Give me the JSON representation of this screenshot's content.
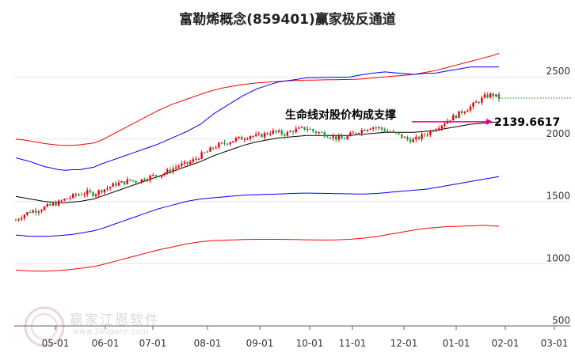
{
  "chart_data": {
    "type": "line",
    "title": "富勒烯概念(859401)赢家极反通道",
    "x_ticks": [
      "05-01",
      "06-01",
      "07-01",
      "08-01",
      "09-01",
      "10-01",
      "11-01",
      "12-01",
      "01-01",
      "02-01",
      "03-01"
    ],
    "y_ticks": [
      500,
      1000,
      1500,
      2000,
      2500
    ],
    "ylim": [
      500,
      2800
    ],
    "grid": "horizontal",
    "series": [
      {
        "values": [
          1350,
          1390,
          1420,
          1430,
          1450,
          1470,
          1490,
          1520,
          1540,
          1560,
          1570,
          1560,
          1590,
          1610,
          1640,
          1650,
          1670,
          1660,
          1680,
          1700,
          1710,
          1730,
          1760,
          1790,
          1800,
          1830,
          1870,
          1900,
          1940,
          1960,
          1980,
          2000,
          2010,
          2030,
          2020,
          2040,
          2060,
          2050,
          2040,
          2070,
          2080,
          2090,
          2060,
          2050,
          2030,
          2010,
          2000,
          2030,
          2060,
          2080,
          2100,
          2090,
          2070,
          2050,
          2030,
          2000,
          1990,
          2020,
          2050,
          2090,
          2120,
          2160,
          2190,
          2230,
          2260,
          2300,
          2340,
          2360,
          2330
        ]
      },
      {
        "values": [
          1540,
          1530,
          1520,
          1510,
          1500,
          1495,
          1490,
          1490,
          1495,
          1500,
          1510,
          1520,
          1540,
          1560,
          1580,
          1600,
          1620,
          1640,
          1660,
          1680,
          1700,
          1720,
          1740,
          1760,
          1780,
          1800,
          1820,
          1845,
          1870,
          1890,
          1910,
          1930,
          1950,
          1965,
          1980,
          1990,
          2000,
          2010,
          2015,
          2020,
          2025,
          2030,
          2030,
          2030,
          2030,
          2030,
          2030,
          2030,
          2035,
          2040,
          2045,
          2050,
          2055,
          2055,
          2055,
          2055,
          2055,
          2060,
          2065,
          2070,
          2080,
          2090,
          2100,
          2110,
          2120,
          2125,
          2130,
          2135,
          2140
        ]
      },
      {
        "values": [
          1230,
          1225,
          1220,
          1220,
          1220,
          1222,
          1225,
          1230,
          1235,
          1245,
          1255,
          1265,
          1280,
          1300,
          1320,
          1340,
          1360,
          1380,
          1400,
          1420,
          1440,
          1455,
          1470,
          1485,
          1500,
          1510,
          1520,
          1525,
          1530,
          1535,
          1540,
          1545,
          1550,
          1552,
          1554,
          1556,
          1558,
          1560,
          1562,
          1564,
          1566,
          1567,
          1566,
          1565,
          1564,
          1563,
          1562,
          1561,
          1560,
          1560,
          1562,
          1565,
          1570,
          1575,
          1580,
          1585,
          1590,
          1595,
          1600,
          1610,
          1620,
          1630,
          1640,
          1650,
          1660,
          1670,
          1680,
          1690,
          1700
        ]
      },
      {
        "values": [
          2000,
          1995,
          1985,
          1975,
          1965,
          1958,
          1952,
          1950,
          1950,
          1955,
          1962,
          1970,
          1990,
          2020,
          2050,
          2080,
          2110,
          2140,
          2170,
          2200,
          2230,
          2255,
          2280,
          2300,
          2320,
          2340,
          2360,
          2380,
          2395,
          2410,
          2420,
          2430,
          2440,
          2446,
          2452,
          2456,
          2460,
          2464,
          2468,
          2470,
          2472,
          2474,
          2475,
          2476,
          2477,
          2478,
          2479,
          2480,
          2482,
          2485,
          2490,
          2495,
          2500,
          2505,
          2510,
          2515,
          2520,
          2530,
          2540,
          2550,
          2565,
          2580,
          2595,
          2610,
          2625,
          2640,
          2655,
          2670,
          2690
        ]
      },
      {
        "values": [
          950,
          945,
          942,
          940,
          940,
          942,
          945,
          950,
          955,
          962,
          970,
          978,
          990,
          1005,
          1020,
          1035,
          1050,
          1065,
          1080,
          1095,
          1110,
          1122,
          1134,
          1146,
          1158,
          1168,
          1176,
          1182,
          1186,
          1188,
          1190,
          1192,
          1194,
          1195,
          1196,
          1196,
          1196,
          1196,
          1195,
          1194,
          1193,
          1192,
          1191,
          1190,
          1190,
          1191,
          1193,
          1196,
          1200,
          1205,
          1212,
          1220,
          1230,
          1240,
          1250,
          1260,
          1270,
          1278,
          1285,
          1290,
          1295,
          1298,
          1300,
          1302,
          1304,
          1306,
          1308,
          1304,
          1300
        ]
      }
    ],
    "annotation": "生命线对股价构成支撑",
    "value_label": "2139.6617",
    "value": 2139.6617,
    "colors": {
      "up_candle": "#e8000b",
      "down_candle": "#1a9a3a",
      "outer_band": "#ff0000",
      "inner_band": "#0000ff",
      "middle_line": "#000000",
      "arrow": "#e0007e",
      "grid": "#e4e4e4",
      "reference_line": "#2a8a2a"
    }
  },
  "watermark": {
    "text": "赢家江恩软件",
    "sub": "www.360gann.com"
  }
}
